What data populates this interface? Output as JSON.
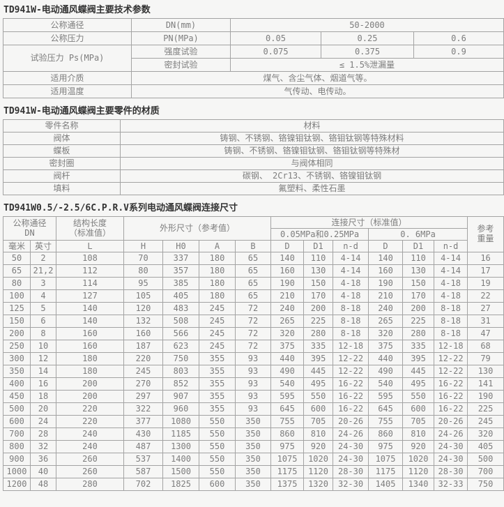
{
  "colors": {
    "background": "#f6f6f5",
    "border": "#a3a3a3",
    "text": "#7d7d7d",
    "title": "#333333"
  },
  "section1": {
    "title": "TD941W-电动通风蝶阀主要技术参数",
    "dn_label": "公称通径",
    "dn_key": "DN(mm)",
    "dn_value": "50-2000",
    "pn_label": "公称压力",
    "pn_key": "PN(MPa)",
    "pn_values": [
      "0.05",
      "0.25",
      "0.6"
    ],
    "ps_label": "试验压力 Ps(MPa)",
    "strength_key": "强度试验",
    "strength_values": [
      "0.075",
      "0.375",
      "0.9"
    ],
    "seal_key": "密封试验",
    "seal_value": "≤ 1.5%泄漏量",
    "medium_label": "适用介质",
    "medium_value": "煤气、含尘气体、烟道气等。",
    "temp_label": "适用温度",
    "temp_value": "气传动、电传动。"
  },
  "section2": {
    "title": "TD941W-电动通风蝶阀主要零件的材质",
    "rows": [
      [
        "零件名称",
        "材料"
      ],
      [
        "阀体",
        "铸钢、不锈钢、铬镍钼钛钢、铬钼钛钢等特殊材料"
      ],
      [
        "蝶板",
        "铸钢、不锈钢、铬镍钼钛钢、铬钼钛钢等特殊材"
      ],
      [
        "密封圈",
        "与阀体相同"
      ],
      [
        "阀杆",
        "碳钢、 2Cr13、不锈钢、铬镍钼钛钢"
      ],
      [
        "填料",
        "氟塑料、柔性石墨"
      ]
    ]
  },
  "section3": {
    "title": "TD941W0.5/-2.5/6C.P.R.V系列电动通风蝶阀连接尺寸",
    "header": {
      "dn_line1": "公称通径",
      "dn_line2": "DN",
      "length_line1": "结构长度",
      "length_line2": "（标准值）",
      "shape": "外形尺寸（参考值）",
      "conn": "连接尺寸（标准值）",
      "conn_low": "0.05MPa和0.25MPa",
      "conn_high": "0. 6MPa",
      "weight_line1": "参考",
      "weight_line2": "重量",
      "sub": [
        "毫米",
        "英寸",
        "L",
        "H",
        "H0",
        "A",
        "B",
        "D",
        "D1",
        "n-d",
        "D",
        "D1",
        "n-d"
      ]
    },
    "rows": [
      [
        "50",
        "2",
        "108",
        "70",
        "337",
        "180",
        "65",
        "140",
        "110",
        "4-14",
        "140",
        "110",
        "4-14",
        "16"
      ],
      [
        "65",
        "21,2",
        "112",
        "80",
        "357",
        "180",
        "65",
        "160",
        "130",
        "4-14",
        "160",
        "130",
        "4-14",
        "17"
      ],
      [
        "80",
        "3",
        "114",
        "95",
        "385",
        "180",
        "65",
        "190",
        "150",
        "4-18",
        "190",
        "150",
        "4-18",
        "19"
      ],
      [
        "100",
        "4",
        "127",
        "105",
        "405",
        "180",
        "65",
        "210",
        "170",
        "4-18",
        "210",
        "170",
        "4-18",
        "22"
      ],
      [
        "125",
        "5",
        "140",
        "120",
        "483",
        "245",
        "72",
        "240",
        "200",
        "8-18",
        "240",
        "200",
        "8-18",
        "27"
      ],
      [
        "150",
        "6",
        "140",
        "132",
        "508",
        "245",
        "72",
        "265",
        "225",
        "8-18",
        "265",
        "225",
        "8-18",
        "31"
      ],
      [
        "200",
        "8",
        "160",
        "160",
        "566",
        "245",
        "72",
        "320",
        "280",
        "8-18",
        "320",
        "280",
        "8-18",
        "47"
      ],
      [
        "250",
        "10",
        "160",
        "187",
        "623",
        "245",
        "72",
        "375",
        "335",
        "12-18",
        "375",
        "335",
        "12-18",
        "68"
      ],
      [
        "300",
        "12",
        "180",
        "220",
        "750",
        "355",
        "93",
        "440",
        "395",
        "12-22",
        "440",
        "395",
        "12-22",
        "79"
      ],
      [
        "350",
        "14",
        "180",
        "245",
        "803",
        "355",
        "93",
        "490",
        "445",
        "12-22",
        "490",
        "445",
        "12-22",
        "130"
      ],
      [
        "400",
        "16",
        "200",
        "270",
        "852",
        "355",
        "93",
        "540",
        "495",
        "16-22",
        "540",
        "495",
        "16-22",
        "141"
      ],
      [
        "450",
        "18",
        "200",
        "297",
        "907",
        "355",
        "93",
        "595",
        "550",
        "16-22",
        "595",
        "550",
        "16-22",
        "190"
      ],
      [
        "500",
        "20",
        "220",
        "322",
        "960",
        "355",
        "93",
        "645",
        "600",
        "16-22",
        "645",
        "600",
        "16-22",
        "225"
      ],
      [
        "600",
        "24",
        "220",
        "377",
        "1080",
        "550",
        "350",
        "755",
        "705",
        "20-26",
        "755",
        "705",
        "20-26",
        "245"
      ],
      [
        "700",
        "28",
        "240",
        "430",
        "1185",
        "550",
        "350",
        "860",
        "810",
        "24-26",
        "860",
        "810",
        "24-26",
        "320"
      ],
      [
        "800",
        "32",
        "240",
        "487",
        "1300",
        "550",
        "350",
        "975",
        "920",
        "24-30",
        "975",
        "920",
        "24-30",
        "405"
      ],
      [
        "900",
        "36",
        "260",
        "537",
        "1400",
        "550",
        "350",
        "1075",
        "1020",
        "24-30",
        "1075",
        "1020",
        "24-30",
        "500"
      ],
      [
        "1000",
        "40",
        "260",
        "587",
        "1500",
        "550",
        "350",
        "1175",
        "1120",
        "28-30",
        "1175",
        "1120",
        "28-30",
        "700"
      ],
      [
        "1200",
        "48",
        "280",
        "702",
        "1825",
        "600",
        "350",
        "1375",
        "1320",
        "32-30",
        "1405",
        "1340",
        "32-33",
        "750"
      ]
    ]
  }
}
